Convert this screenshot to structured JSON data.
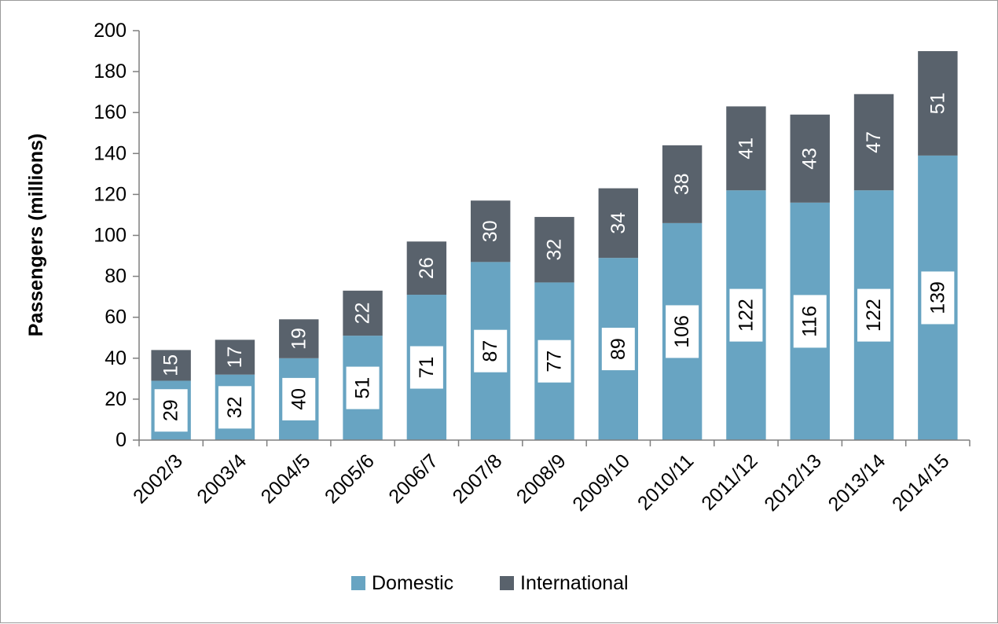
{
  "chart_data": {
    "type": "bar",
    "stacked": true,
    "categories": [
      "2002/3",
      "2003/4",
      "2004/5",
      "2005/6",
      "2006/7",
      "2007/8",
      "2008/9",
      "2009/10",
      "2010/11",
      "2011/12",
      "2012/13",
      "2013/14",
      "2014/15"
    ],
    "series": [
      {
        "name": "Domestic",
        "values": [
          29,
          32,
          40,
          51,
          71,
          87,
          77,
          89,
          106,
          122,
          116,
          122,
          139
        ],
        "color": "#68a4c2"
      },
      {
        "name": "International",
        "values": [
          15,
          17,
          19,
          22,
          26,
          30,
          32,
          34,
          38,
          41,
          43,
          47,
          51
        ],
        "color": "#59626c"
      }
    ],
    "title": "",
    "xlabel": "",
    "ylabel": "Passengers (millions)",
    "ylim": [
      0,
      200
    ],
    "yticks": [
      0,
      20,
      40,
      60,
      80,
      100,
      120,
      140,
      160,
      180,
      200
    ],
    "grid": false,
    "legend": "bottom",
    "data_labels": true
  }
}
